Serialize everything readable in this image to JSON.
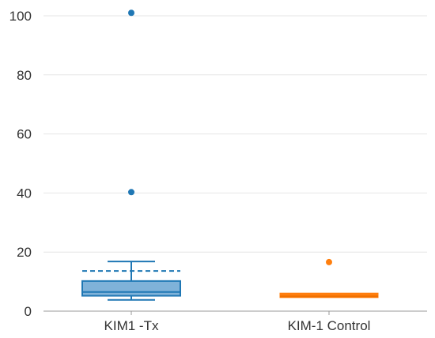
{
  "chart_data": {
    "type": "box",
    "title": "",
    "xlabel": "",
    "ylabel": "",
    "categories": [
      "KIM1 -Tx",
      "KIM-1 Control"
    ],
    "ylim": [
      0,
      105
    ],
    "yticks": [
      0,
      20,
      40,
      60,
      80,
      100
    ],
    "yticks_labels": [
      "0",
      "20",
      "40",
      "60",
      "80",
      "100"
    ],
    "grid": true,
    "series": [
      {
        "category": "KIM1 -Tx",
        "color": "#1f77b4",
        "fill": "#7fb2d9",
        "whisker_low": 3.8,
        "q1": 5.2,
        "median": 6.5,
        "q3": 10.2,
        "whisker_high": 16.8,
        "mean": 13.6,
        "outliers": [
          40.3,
          101
        ]
      },
      {
        "category": "KIM-1 Control",
        "color": "#ff7f0e",
        "fill": "#ff7f0e",
        "whisker_low": 4.6,
        "q1": 4.6,
        "median": 5.0,
        "q3": 6.1,
        "whisker_high": 6.1,
        "mean": 5.3,
        "outliers": [
          16.6
        ]
      }
    ]
  }
}
